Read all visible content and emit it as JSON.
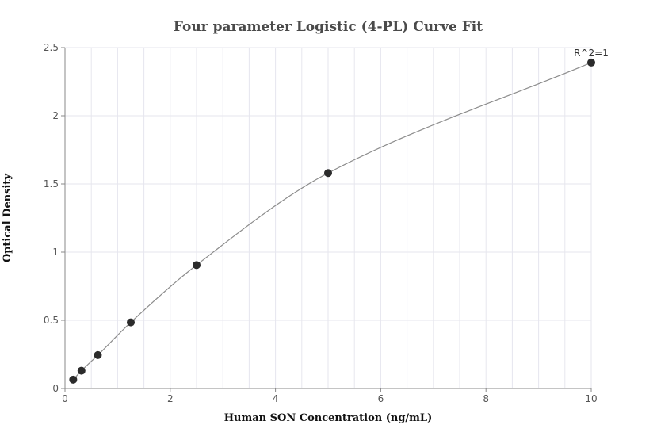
{
  "chart_data": {
    "type": "scatter",
    "title": "Four parameter Logistic (4-PL) Curve Fit",
    "xlabel": "Human SON Concentration (ng/mL)",
    "ylabel": "Optical Density",
    "xlim": [
      0,
      10
    ],
    "ylim": [
      0,
      2.5
    ],
    "xticks": [
      0,
      2,
      4,
      6,
      8,
      10
    ],
    "xtick_labels": [
      "0",
      "2",
      "4",
      "6",
      "8",
      "10"
    ],
    "yticks": [
      0,
      0.5,
      1,
      1.5,
      2,
      2.5
    ],
    "ytick_labels": [
      "0",
      "0.5",
      "1",
      "1.5",
      "2",
      "2.5"
    ],
    "grid": true,
    "series": [
      {
        "x": [
          0.156,
          0.313,
          0.625,
          1.25,
          2.5,
          5,
          10
        ],
        "values": [
          0.065,
          0.13,
          0.245,
          0.485,
          0.905,
          1.58,
          2.39
        ]
      }
    ],
    "fit_curve": {
      "model": "4PL",
      "x": [
        0.156,
        0.313,
        0.625,
        1.25,
        2.5,
        5,
        10
      ],
      "y": [
        0.065,
        0.13,
        0.245,
        0.485,
        0.905,
        1.58,
        2.39
      ]
    },
    "annotations": [
      "R^2=1"
    ],
    "colors": {
      "points": "#2b2b2b",
      "curve": "#8c8c8c",
      "grid": "#e6e6ee",
      "axis": "#888888"
    }
  }
}
